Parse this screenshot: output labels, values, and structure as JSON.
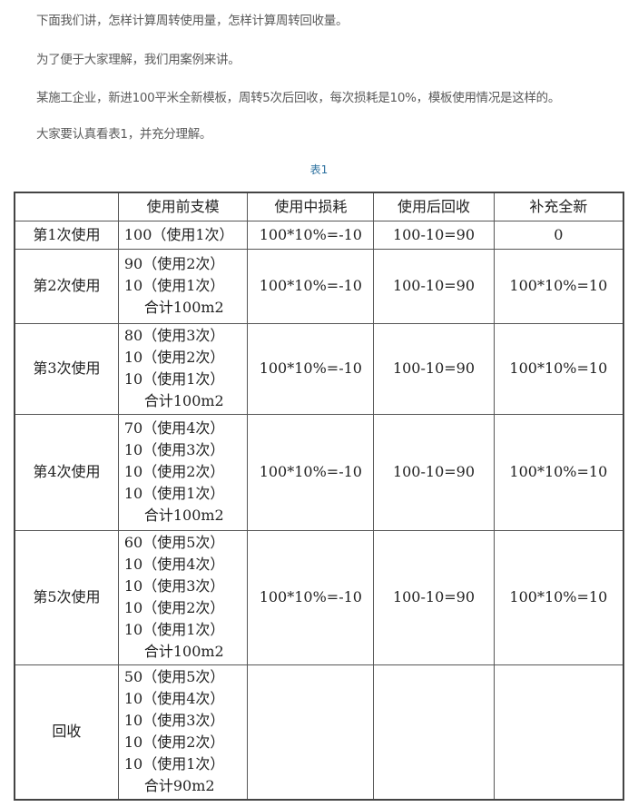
{
  "paragraphs": [
    "下面我们讲，怎样计算周转使用量，怎样计算周转回收量。",
    "为了便于大家理解，我们用案例来讲。",
    "某施工企业，新进100平米全新模板，周转5次后回收，每次损耗是10%，模板使用情况是这样的。",
    "大家要认真看表1，并充分理解。"
  ],
  "caption": "表1",
  "table": {
    "headers": [
      "",
      "使用前支模",
      "使用中损耗",
      "使用后回收",
      "补充全新"
    ],
    "rows": [
      {
        "label": "第1次使用",
        "pre": [
          "100（使用1次）"
        ],
        "loss": "100*10%=-10",
        "recover": "100-10=90",
        "add": "0"
      },
      {
        "label": "第2次使用",
        "pre": [
          "90（使用2次）",
          "10（使用1次）",
          "合计100m2"
        ],
        "loss": "100*10%=-10",
        "recover": "100-10=90",
        "add": "100*10%=10"
      },
      {
        "label": "第3次使用",
        "pre": [
          "80（使用3次）",
          "10（使用2次）",
          "10（使用1次）",
          "合计100m2"
        ],
        "loss": "100*10%=-10",
        "recover": "100-10=90",
        "add": "100*10%=10"
      },
      {
        "label": "第4次使用",
        "pre": [
          "70（使用4次）",
          "10（使用3次）",
          "10（使用2次）",
          "10（使用1次）",
          "合计100m2"
        ],
        "loss": "100*10%=-10",
        "recover": "100-10=90",
        "add": "100*10%=10"
      },
      {
        "label": "第5次使用",
        "pre": [
          "60（使用5次）",
          "10（使用4次）",
          "10（使用3次）",
          "10（使用2次）",
          "10（使用1次）",
          "合计100m2"
        ],
        "loss": "100*10%=-10",
        "recover": "100-10=90",
        "add": "100*10%=10"
      },
      {
        "label": "回收",
        "pre": [
          "50（使用5次）",
          "10（使用4次）",
          "10（使用3次）",
          "10（使用2次）",
          "10（使用1次）",
          "合计90m2"
        ],
        "loss": "",
        "recover": "",
        "add": ""
      }
    ]
  }
}
